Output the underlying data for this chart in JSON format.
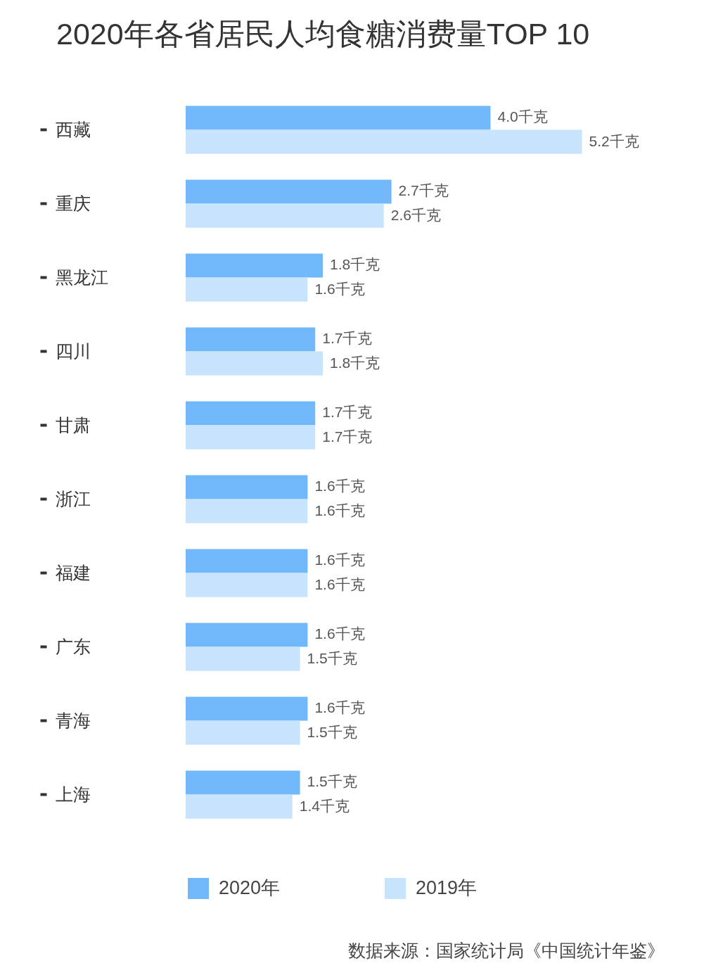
{
  "chart_data": {
    "type": "bar",
    "orientation": "horizontal",
    "title": "2020年各省居民人均食糖消费量TOP 10",
    "categories": [
      "西藏",
      "重庆",
      "黑龙江",
      "四川",
      "甘肃",
      "浙江",
      "福建",
      "广东",
      "青海",
      "上海"
    ],
    "series": [
      {
        "name": "2020年",
        "color": "#70b8fa",
        "values": [
          4.0,
          2.7,
          1.8,
          1.7,
          1.7,
          1.6,
          1.6,
          1.6,
          1.6,
          1.5
        ],
        "value_labels": [
          "4.0千克",
          "2.7千克",
          "1.8千克",
          "1.7千克",
          "1.7千克",
          "1.6千克",
          "1.6千克",
          "1.6千克",
          "1.6千克",
          "1.5千克"
        ]
      },
      {
        "name": "2019年",
        "color": "#c8e4fd",
        "values": [
          5.2,
          2.6,
          1.6,
          1.8,
          1.7,
          1.6,
          1.6,
          1.5,
          1.5,
          1.4
        ],
        "value_labels": [
          "5.2千克",
          "2.6千克",
          "1.6千克",
          "1.8千克",
          "1.7千克",
          "1.6千克",
          "1.6千克",
          "1.5千克",
          "1.5千克",
          "1.4千克"
        ]
      }
    ],
    "tick_labels": "y",
    "legend": "bottom",
    "annotations": [
      "数据来源：国家统计局《中国统计年鉴》"
    ]
  }
}
